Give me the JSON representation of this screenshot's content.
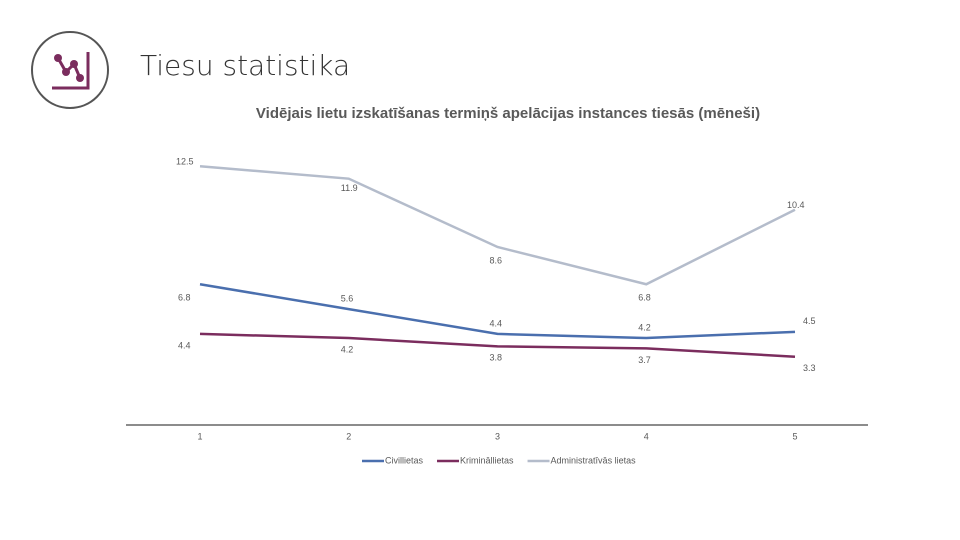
{
  "page_title": "Tiesu statistika",
  "chart_data": {
    "type": "line",
    "title": "Vidējais lietu izskatīšanas termiņš apelācijas instances tiesās (mēneši)",
    "categories": [
      "1",
      "2",
      "3",
      "4",
      "5"
    ],
    "series": [
      {
        "name": "Civillietas",
        "color": "#4a6fae",
        "values": [
          6.8,
          5.6,
          4.4,
          4.2,
          4.5
        ]
      },
      {
        "name": "Krimināllietas",
        "color": "#7b2d5e",
        "values": [
          4.4,
          4.2,
          3.8,
          3.7,
          3.3
        ]
      },
      {
        "name": "Administratīvās lietas",
        "color": "#b4bccb",
        "values": [
          12.5,
          11.9,
          8.6,
          6.8,
          10.4
        ]
      }
    ]
  }
}
